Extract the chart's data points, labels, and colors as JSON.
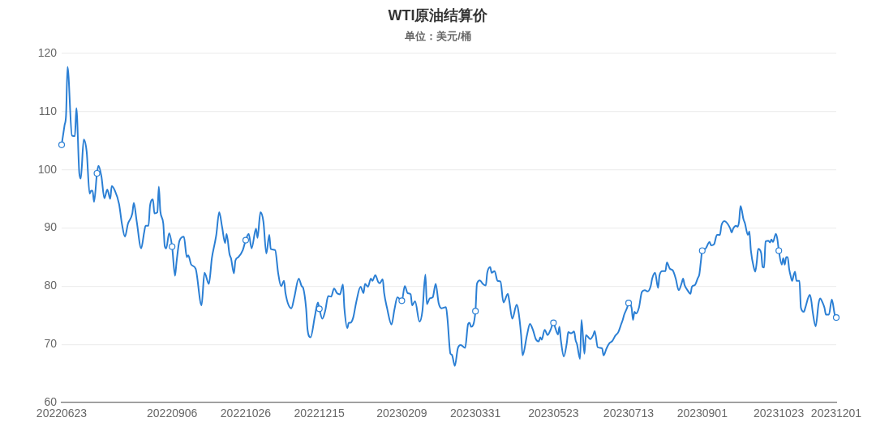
{
  "chart_data": {
    "type": "line",
    "title": "WTI原油结算价",
    "subtitle": "单位：美元/桶",
    "xlim": [
      "2022-06-23",
      "2023-12-01"
    ],
    "xticks": [
      {
        "value": "2022-06-23",
        "label": "20220623"
      },
      {
        "value": "2022-09-06",
        "label": "20220906"
      },
      {
        "value": "2022-10-26",
        "label": "20221026"
      },
      {
        "value": "2022-12-15",
        "label": "20221215"
      },
      {
        "value": "2023-02-09",
        "label": "20230209"
      },
      {
        "value": "2023-03-31",
        "label": "20230331"
      },
      {
        "value": "2023-05-23",
        "label": "20230523"
      },
      {
        "value": "2023-07-13",
        "label": "20230713"
      },
      {
        "value": "2023-09-01",
        "label": "20230901"
      },
      {
        "value": "2023-10-23",
        "label": "20231023"
      },
      {
        "value": "2023-12-01",
        "label": "20231201"
      }
    ],
    "ylim": [
      60,
      120
    ],
    "yticks": [
      60,
      70,
      80,
      90,
      100,
      110,
      120
    ],
    "grid": "y",
    "series": [
      {
        "type": "line",
        "color": "#2b7fd4",
        "x": [
          "2022-06-23",
          "2022-06-25",
          "2022-06-26",
          "2022-06-27",
          "2022-06-30",
          "2022-07-02",
          "2022-07-03",
          "2022-07-05",
          "2022-07-06",
          "2022-07-08",
          "2022-07-10",
          "2022-07-12",
          "2022-07-13",
          "2022-07-14",
          "2022-07-15",
          "2022-07-17",
          "2022-07-18",
          "2022-07-20",
          "2022-07-22",
          "2022-07-24",
          "2022-07-26",
          "2022-07-27",
          "2022-07-29",
          "2022-08-01",
          "2022-08-03",
          "2022-08-05",
          "2022-08-07",
          "2022-08-10",
          "2022-08-11",
          "2022-08-13",
          "2022-08-16",
          "2022-08-18",
          "2022-08-19",
          "2022-08-21",
          "2022-08-22",
          "2022-08-24",
          "2022-08-25",
          "2022-08-27",
          "2022-08-28",
          "2022-08-29",
          "2022-08-31",
          "2022-09-01",
          "2022-09-02",
          "2022-09-04",
          "2022-09-06",
          "2022-09-08",
          "2022-09-09",
          "2022-09-11",
          "2022-09-14",
          "2022-09-16",
          "2022-09-17",
          "2022-09-19",
          "2022-09-22",
          "2022-09-26",
          "2022-09-28",
          "2022-10-01",
          "2022-10-03",
          "2022-10-05",
          "2022-10-06",
          "2022-10-08",
          "2022-10-10",
          "2022-10-12",
          "2022-10-13",
          "2022-10-15",
          "2022-10-16",
          "2022-10-18",
          "2022-10-19",
          "2022-10-21",
          "2022-10-24",
          "2022-10-26",
          "2022-10-28",
          "2022-10-30",
          "2022-11-02",
          "2022-11-03",
          "2022-11-05",
          "2022-11-07",
          "2022-11-09",
          "2022-11-11",
          "2022-11-12",
          "2022-11-15",
          "2022-11-17",
          "2022-11-19",
          "2022-11-21",
          "2022-11-22",
          "2022-11-26",
          "2022-11-28",
          "2022-12-01",
          "2022-12-03",
          "2022-12-04",
          "2022-12-06",
          "2022-12-07",
          "2022-12-09",
          "2022-12-12",
          "2022-12-14",
          "2022-12-15",
          "2022-12-17",
          "2022-12-19",
          "2022-12-21",
          "2022-12-23",
          "2022-12-25",
          "2022-12-27",
          "2022-12-29",
          "2022-12-31",
          "2023-01-01",
          "2023-01-03",
          "2023-01-04",
          "2023-01-05",
          "2023-01-07",
          "2023-01-09",
          "2023-01-12",
          "2023-01-14",
          "2023-01-15",
          "2023-01-17",
          "2023-01-19",
          "2023-01-20",
          "2023-01-22",
          "2023-01-24",
          "2023-01-25",
          "2023-01-27",
          "2023-01-28",
          "2023-01-30",
          "2023-02-02",
          "2023-02-04",
          "2023-02-06",
          "2023-02-09",
          "2023-02-11",
          "2023-02-13",
          "2023-02-15",
          "2023-02-16",
          "2023-02-18",
          "2023-02-21",
          "2023-02-23",
          "2023-02-25",
          "2023-02-26",
          "2023-02-28",
          "2023-03-02",
          "2023-03-04",
          "2023-03-06",
          "2023-03-08",
          "2023-03-11",
          "2023-03-12",
          "2023-03-14",
          "2023-03-15",
          "2023-03-17",
          "2023-03-19",
          "2023-03-21",
          "2023-03-24",
          "2023-03-26",
          "2023-03-27",
          "2023-03-28",
          "2023-03-31",
          "2023-04-01",
          "2023-04-03",
          "2023-04-05",
          "2023-04-07",
          "2023-04-08",
          "2023-04-10",
          "2023-04-11",
          "2023-04-13",
          "2023-04-15",
          "2023-04-17",
          "2023-04-19",
          "2023-04-22",
          "2023-04-23",
          "2023-04-25",
          "2023-04-28",
          "2023-04-29",
          "2023-05-01",
          "2023-05-02",
          "2023-05-05",
          "2023-05-07",
          "2023-05-09",
          "2023-05-11",
          "2023-05-13",
          "2023-05-14",
          "2023-05-15",
          "2023-05-17",
          "2023-05-19",
          "2023-05-21",
          "2023-05-23",
          "2023-05-24",
          "2023-05-26",
          "2023-05-27",
          "2023-05-28",
          "2023-05-30",
          "2023-06-01",
          "2023-06-02",
          "2023-06-04",
          "2023-06-06",
          "2023-06-07",
          "2023-06-08",
          "2023-06-10",
          "2023-06-11",
          "2023-06-13",
          "2023-06-14",
          "2023-06-17",
          "2023-06-19",
          "2023-06-20",
          "2023-06-22",
          "2023-06-25",
          "2023-06-26",
          "2023-06-28",
          "2023-06-30",
          "2023-07-02",
          "2023-07-04",
          "2023-07-06",
          "2023-07-08",
          "2023-07-09",
          "2023-07-10",
          "2023-07-12",
          "2023-07-13",
          "2023-07-15",
          "2023-07-16",
          "2023-07-17",
          "2023-07-18",
          "2023-07-20",
          "2023-07-22",
          "2023-07-24",
          "2023-07-26",
          "2023-07-28",
          "2023-07-29",
          "2023-07-31",
          "2023-08-02",
          "2023-08-03",
          "2023-08-05",
          "2023-08-07",
          "2023-08-08",
          "2023-08-10",
          "2023-08-12",
          "2023-08-14",
          "2023-08-16",
          "2023-08-18",
          "2023-08-19",
          "2023-08-20",
          "2023-08-22",
          "2023-08-24",
          "2023-08-25",
          "2023-08-27",
          "2023-08-29",
          "2023-08-30",
          "2023-08-31",
          "2023-09-01",
          "2023-09-03",
          "2023-09-06",
          "2023-09-07",
          "2023-09-09",
          "2023-09-11",
          "2023-09-13",
          "2023-09-14",
          "2023-09-16",
          "2023-09-18",
          "2023-09-20",
          "2023-09-21",
          "2023-09-22",
          "2023-09-24",
          "2023-09-25",
          "2023-09-26",
          "2023-09-27",
          "2023-09-29",
          "2023-09-30",
          "2023-10-02",
          "2023-10-03",
          "2023-10-04",
          "2023-10-06",
          "2023-10-07",
          "2023-10-08",
          "2023-10-09",
          "2023-10-11",
          "2023-10-12",
          "2023-10-13",
          "2023-10-14",
          "2023-10-16",
          "2023-10-17",
          "2023-10-18",
          "2023-10-19",
          "2023-10-21",
          "2023-10-22",
          "2023-10-23",
          "2023-10-25",
          "2023-10-26",
          "2023-10-27",
          "2023-10-28",
          "2023-10-29",
          "2023-10-30",
          "2023-10-31",
          "2023-11-01",
          "2023-11-02",
          "2023-11-03",
          "2023-11-04",
          "2023-11-06",
          "2023-11-07",
          "2023-11-09",
          "2023-11-10",
          "2023-11-13",
          "2023-11-14",
          "2023-11-15",
          "2023-11-17",
          "2023-11-19",
          "2023-11-20",
          "2023-11-22",
          "2023-11-23",
          "2023-11-24",
          "2023-11-26",
          "2023-11-28",
          "2023-11-30",
          "2023-12-01"
        ],
        "values": [
          104.3,
          107.7,
          109.4,
          117.7,
          105.9,
          105.8,
          110.6,
          99.4,
          98.5,
          105.2,
          103.1,
          95.9,
          96.4,
          96.4,
          94.5,
          99.4,
          100.7,
          98.9,
          95.1,
          96.6,
          95.0,
          97.2,
          96.5,
          94.1,
          90.6,
          88.5,
          90.7,
          92.5,
          94.3,
          91.1,
          86.5,
          89.2,
          90.4,
          90.4,
          93.8,
          94.9,
          92.5,
          92.7,
          97.1,
          92.9,
          90.8,
          86.9,
          86.5,
          89.1,
          86.8,
          81.8,
          84.1,
          87.8,
          88.5,
          85.0,
          85.3,
          83.7,
          83.0,
          76.7,
          82.3,
          80.4,
          84.8,
          87.4,
          88.8,
          92.7,
          90.1,
          87.4,
          89.0,
          85.5,
          84.8,
          82.2,
          84.4,
          85.0,
          86.2,
          87.9,
          89.0,
          86.5,
          89.9,
          88.3,
          92.7,
          91.1,
          85.6,
          88.8,
          86.4,
          86.2,
          82.3,
          80.0,
          80.9,
          78.8,
          76.2,
          78.1,
          81.3,
          80.0,
          79.7,
          76.2,
          72.5,
          71.2,
          74.9,
          77.2,
          76.1,
          74.4,
          75.8,
          78.3,
          78.2,
          79.6,
          78.8,
          78.6,
          80.3,
          76.2,
          72.8,
          73.7,
          73.7,
          74.6,
          77.2,
          79.9,
          78.8,
          80.4,
          79.9,
          81.3,
          80.9,
          81.9,
          80.7,
          80.5,
          81.2,
          78.8,
          76.2,
          73.4,
          76.0,
          78.1,
          77.5,
          80.0,
          78.8,
          78.6,
          76.7,
          77.4,
          73.9,
          75.8,
          82.0,
          76.9,
          77.9,
          78.1,
          80.4,
          77.1,
          76.2,
          76.4,
          74.4,
          68.4,
          68.2,
          66.3,
          69.3,
          69.9,
          69.4,
          73.5,
          73.7,
          73.0,
          75.7,
          80.4,
          81.0,
          80.4,
          80.1,
          82.3,
          83.3,
          82.3,
          82.6,
          80.9,
          80.8,
          77.2,
          78.7,
          77.4,
          74.4,
          76.8,
          76.0,
          71.6,
          68.1,
          71.6,
          73.5,
          72.5,
          70.9,
          70.5,
          71.2,
          70.8,
          72.5,
          71.6,
          72.5,
          73.7,
          73.0,
          71.7,
          73.0,
          70.7,
          67.9,
          70.2,
          72.1,
          71.9,
          72.2,
          70.7,
          70.0,
          67.5,
          74.2,
          68.4,
          71.6,
          70.9,
          71.6,
          72.3,
          69.5,
          69.3,
          68.1,
          69.3,
          70.2,
          70.6,
          71.5,
          72.1,
          73.5,
          74.2,
          75.1,
          76.3,
          77.1,
          76.3,
          74.2,
          75.6,
          75.3,
          76.3,
          79.0,
          79.3,
          79.1,
          80.0,
          81.3,
          82.3,
          79.7,
          81.9,
          82.6,
          82.6,
          84.1,
          83.0,
          82.7,
          81.3,
          79.3,
          80.5,
          81.3,
          80.2,
          79.3,
          78.7,
          79.9,
          80.2,
          81.4,
          82.0,
          84.1,
          86.1,
          86.4,
          87.6,
          87.0,
          87.2,
          88.8,
          88.8,
          90.4,
          91.2,
          90.8,
          89.9,
          89.2,
          89.9,
          90.4,
          90.2,
          91.1,
          93.8,
          91.5,
          90.8,
          88.8,
          89.4,
          86.2,
          83.2,
          82.5,
          84.1,
          86.4,
          85.7,
          83.3,
          83.2,
          87.7,
          87.8,
          87.5,
          88.0,
          87.6,
          89.0,
          88.1,
          86.1,
          83.7,
          84.8,
          83.7,
          85.0,
          85.0,
          83.0,
          81.8,
          80.9,
          81.8,
          82.5,
          80.9,
          80.9,
          76.3,
          75.6,
          76.3,
          78.5,
          77.6,
          75.6,
          73.1,
          77.0,
          77.9,
          77.0,
          76.3,
          75.1,
          75.1,
          77.7,
          75.1,
          74.6
        ]
      },
      {
        "type": "scatter",
        "color": "#2b7fd4",
        "marker": "circle",
        "x": [
          "2022-06-23",
          "2022-07-17",
          "2022-09-06",
          "2022-10-26",
          "2022-12-15",
          "2023-02-09",
          "2023-03-31",
          "2023-05-23",
          "2023-07-13",
          "2023-09-01",
          "2023-10-23",
          "2023-12-01"
        ],
        "values": [
          104.3,
          99.4,
          86.8,
          87.9,
          76.1,
          77.5,
          75.7,
          73.7,
          77.1,
          86.1,
          86.1,
          74.6
        ]
      }
    ]
  }
}
